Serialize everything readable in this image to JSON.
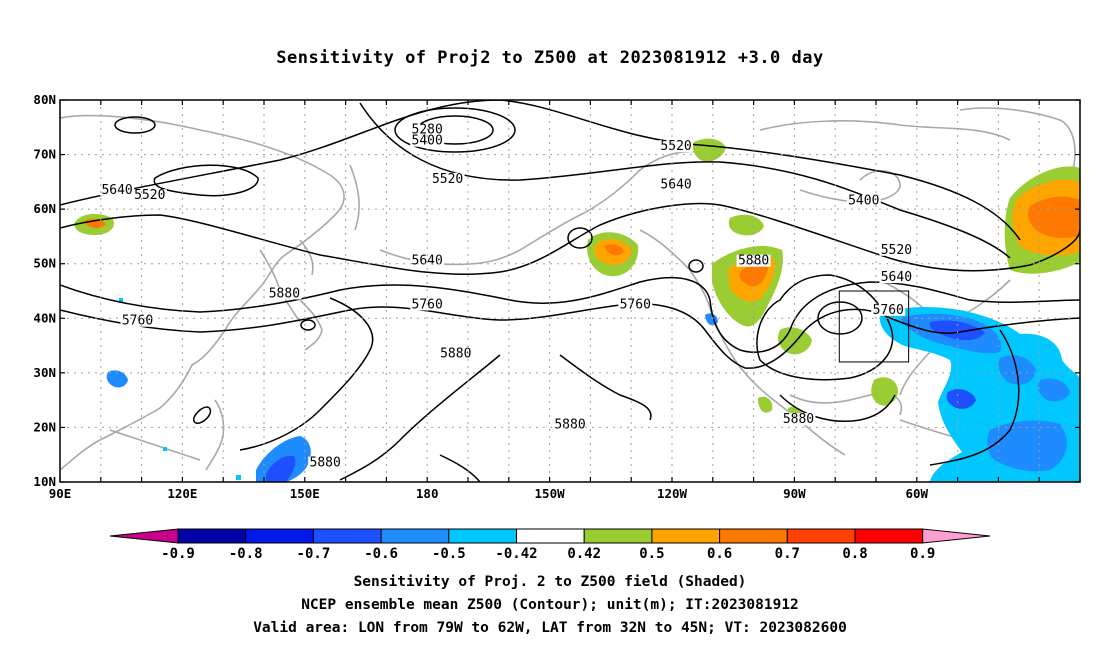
{
  "title": "Sensitivity of Proj2 to Z500 at 2023081912 +3.0 day",
  "map": {
    "lat_ticks": [
      "80N",
      "70N",
      "60N",
      "50N",
      "40N",
      "30N",
      "20N",
      "10N"
    ],
    "lon_ticks": [
      "90E",
      "120E",
      "150E",
      "180",
      "150W",
      "120W",
      "90W",
      "60W"
    ],
    "contour_labels": [
      {
        "text": "5280",
        "lon": 180,
        "lat": 74
      },
      {
        "text": "5400",
        "lon": 180,
        "lat": 72
      },
      {
        "text": "5520",
        "lon": -175,
        "lat": 65
      },
      {
        "text": "5520",
        "lon": -119,
        "lat": 71
      },
      {
        "text": "5520",
        "lon": 112,
        "lat": 62
      },
      {
        "text": "5640",
        "lon": 104,
        "lat": 63
      },
      {
        "text": "5640",
        "lon": -119,
        "lat": 64
      },
      {
        "text": "5640",
        "lon": -180,
        "lat": 50
      },
      {
        "text": "5400",
        "lon": -73,
        "lat": 61
      },
      {
        "text": "5520",
        "lon": -65,
        "lat": 52
      },
      {
        "text": "5640",
        "lon": -65,
        "lat": 47
      },
      {
        "text": "5760",
        "lon": -67,
        "lat": 41
      },
      {
        "text": "5760",
        "lon": -180,
        "lat": 42
      },
      {
        "text": "5760",
        "lon": -129,
        "lat": 42
      },
      {
        "text": "5760",
        "lon": 109,
        "lat": 39
      },
      {
        "text": "5880",
        "lon": -100,
        "lat": 50
      },
      {
        "text": "5880",
        "lon": 145,
        "lat": 44
      },
      {
        "text": "5880",
        "lon": -173,
        "lat": 33
      },
      {
        "text": "5880",
        "lon": -145,
        "lat": 20
      },
      {
        "text": "5880",
        "lon": -89,
        "lat": 21
      },
      {
        "text": "5880",
        "lon": 155,
        "lat": 13
      }
    ],
    "valid_box": {
      "lon_west": -79,
      "lon_east": -62,
      "lat_south": 32,
      "lat_north": 45
    }
  },
  "colorbar": {
    "labels": [
      "-0.9",
      "-0.8",
      "-0.7",
      "-0.6",
      "-0.5",
      "-0.42",
      "0.42",
      "0.5",
      "0.6",
      "0.7",
      "0.8",
      "0.9"
    ],
    "colors": [
      "#0000a8",
      "#0018e8",
      "#1e50ff",
      "#1e8cff",
      "#00c8ff",
      "#ffffff",
      "#9acd32",
      "#ffa500",
      "#ff7800",
      "#ff4000",
      "#ff0000"
    ],
    "low_end": "#c8008c",
    "high_end": "#ff9ed2"
  },
  "captions": [
    "Sensitivity of Proj. 2 to Z500 field (Shaded)",
    "NCEP ensemble mean Z500 (Contour); unit(m); IT:2023081912",
    "Valid area: LON from 79W to 62W, LAT from 32N to 45N; VT: 2023082600"
  ]
}
